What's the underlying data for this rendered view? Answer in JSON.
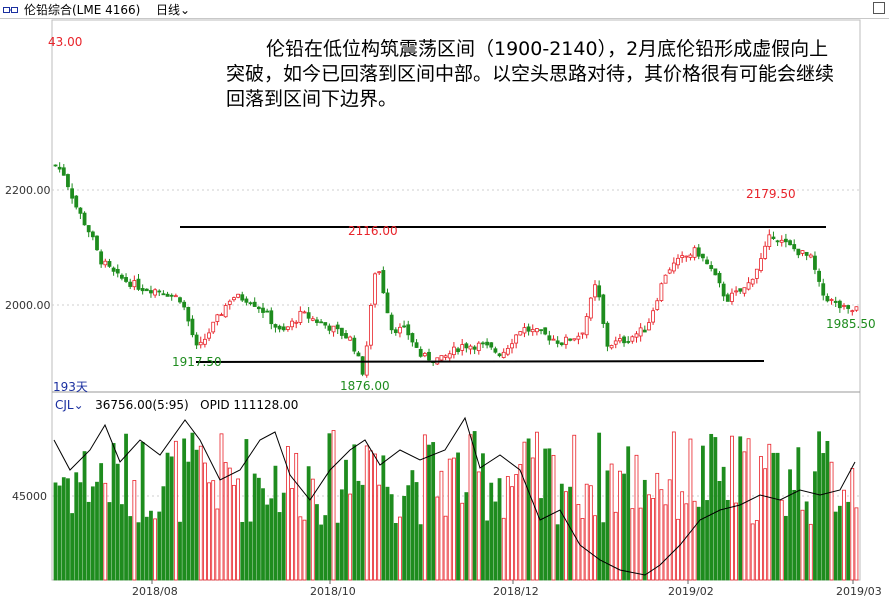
{
  "header": {
    "instrument": "伦铅综合(LME 4166)",
    "period": "日线"
  },
  "annotation": "伦铅在低位构筑震荡区间（1900-2140），2月底伦铅形成虚假向上突破，如今已回落到区间中部。以空头思路对待，其价格很有可能会继续回落到区间下边界。",
  "price_panel": {
    "days_label": "193天",
    "y_ticks": [
      "2200.00",
      "2000.00"
    ],
    "labels": {
      "high_left": "43.00",
      "low_aug": "1917.50",
      "high_oct": "2116.00",
      "low_oct": "1876.00",
      "high_feb": "2179.50",
      "last_low": "1985.50"
    }
  },
  "volume_panel": {
    "indicator": "CJL",
    "volume_text": "36756.00(5:95)",
    "opid_text": "OPID 111128.00",
    "y_tick": "45000"
  },
  "x_ticks": [
    "2018/08",
    "2018/10",
    "2018/12",
    "2019/02",
    "2019/03"
  ],
  "colors": {
    "up": "#e8232a",
    "down": "#1e8c1e",
    "line": "#000000",
    "axis_text": "#333333"
  },
  "chart_data": [
    {
      "type": "candlestick",
      "x": [
        "2018/08",
        "2018/10",
        "2018/12",
        "2019/02",
        "2019/03"
      ],
      "key_points": [
        {
          "label": "43.00",
          "value": 2243.0
        },
        {
          "label": "1917.50",
          "value": 1917.5
        },
        {
          "label": "2116.00",
          "value": 2116.0
        },
        {
          "label": "1876.00",
          "value": 1876.0
        },
        {
          "label": "2179.50",
          "value": 2179.5
        },
        {
          "label": "1985.50",
          "value": 1985.5
        }
      ],
      "y_ticks": [
        2200,
        2000
      ],
      "ylim": [
        1860,
        2270
      ],
      "range_lines": [
        2140,
        1900
      ]
    },
    {
      "type": "bar",
      "name": "CJL",
      "y_ticks": [
        45000
      ]
    }
  ]
}
